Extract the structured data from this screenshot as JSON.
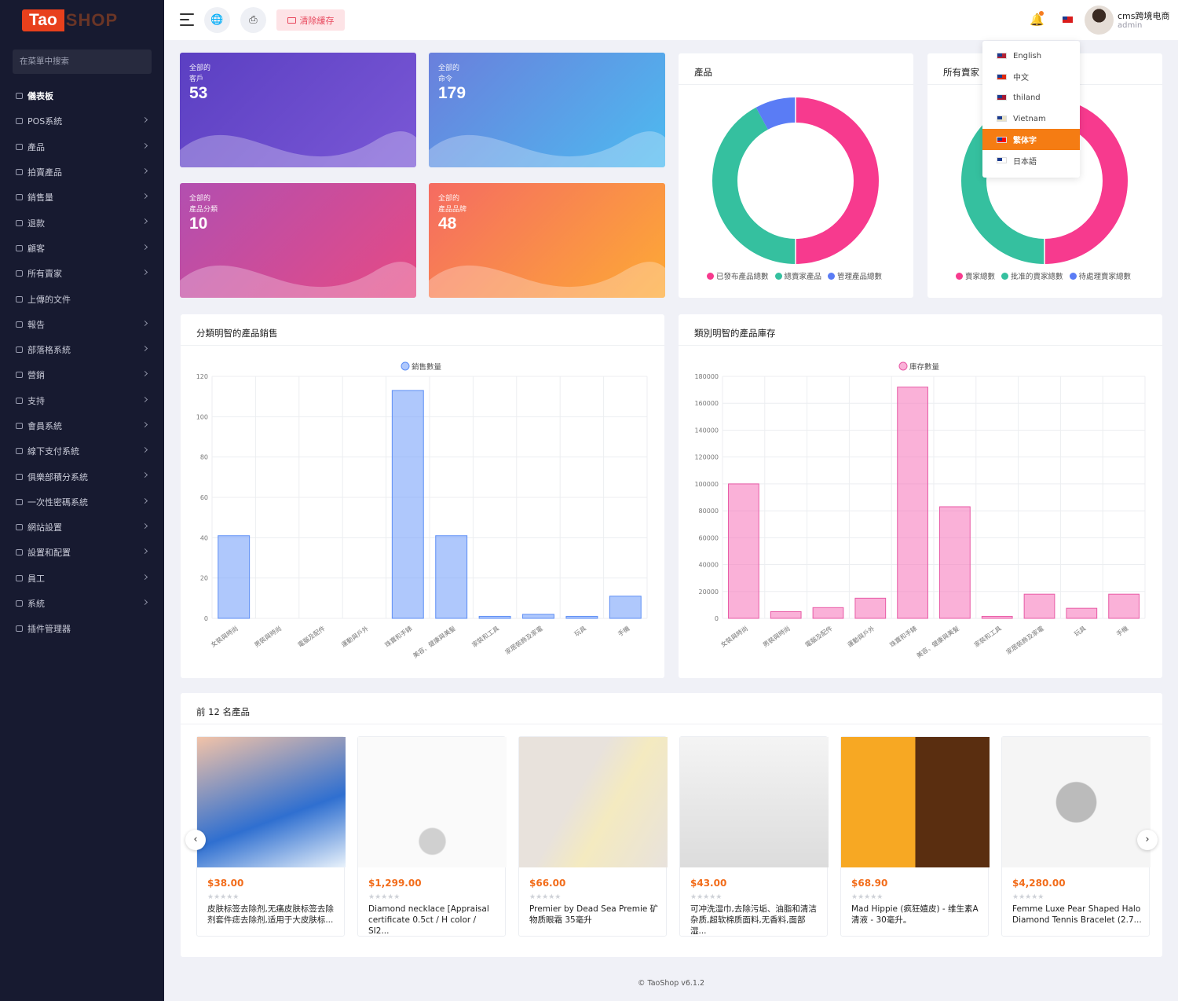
{
  "sidebar": {
    "logo_tao": "Tao",
    "logo_shop": "SHOP",
    "search_placeholder": "在菜單中搜索",
    "items": [
      {
        "label": "儀表板",
        "icon": "home-icon",
        "chevron": false
      },
      {
        "label": "POS系統",
        "icon": "list-icon",
        "chevron": true
      },
      {
        "label": "產品",
        "icon": "cart-icon",
        "chevron": true
      },
      {
        "label": "拍賣產品",
        "icon": "gavel-icon",
        "chevron": true
      },
      {
        "label": "銷售量",
        "icon": "sales-icon",
        "chevron": true
      },
      {
        "label": "退款",
        "icon": "refund-icon",
        "chevron": true
      },
      {
        "label": "顧客",
        "icon": "users-icon",
        "chevron": true
      },
      {
        "label": "所有賣家",
        "icon": "user-icon",
        "chevron": true
      },
      {
        "label": "上傳的文件",
        "icon": "file-icon",
        "chevron": false
      },
      {
        "label": "報告",
        "icon": "report-icon",
        "chevron": true
      },
      {
        "label": "部落格系統",
        "icon": "megaphone-icon",
        "chevron": true
      },
      {
        "label": "營銷",
        "icon": "megaphone-icon",
        "chevron": true
      },
      {
        "label": "支持",
        "icon": "link-icon",
        "chevron": true
      },
      {
        "label": "會員系統",
        "icon": "link-icon",
        "chevron": true
      },
      {
        "label": "線下支付系統",
        "icon": "money-icon",
        "chevron": true
      },
      {
        "label": "俱樂部積分系統",
        "icon": "points-icon",
        "chevron": true
      },
      {
        "label": "一次性密碼系統",
        "icon": "phone-icon",
        "chevron": true
      },
      {
        "label": "網站設置",
        "icon": "monitor-icon",
        "chevron": true
      },
      {
        "label": "設置和配置",
        "icon": "gear-icon",
        "chevron": true
      },
      {
        "label": "員工",
        "icon": "user-icon",
        "chevron": true
      },
      {
        "label": "系統",
        "icon": "user-icon",
        "chevron": true
      },
      {
        "label": "插件管理器",
        "icon": "plugin-icon",
        "chevron": false
      }
    ]
  },
  "topbar": {
    "clear_cache": "清除緩存",
    "user_name": "cms跨境电商",
    "user_role": "admin"
  },
  "language_menu": [
    {
      "label": "English",
      "selected": false
    },
    {
      "label": "中文",
      "selected": false
    },
    {
      "label": "thiland",
      "selected": false
    },
    {
      "label": "Vietnam",
      "selected": false
    },
    {
      "label": "繁体字",
      "selected": true
    },
    {
      "label": "日本語",
      "selected": false
    }
  ],
  "stats": [
    {
      "line1": "全部的",
      "line2": "客戶",
      "value": "53"
    },
    {
      "line1": "全部的",
      "line2": "命令",
      "value": "179"
    },
    {
      "line1": "全部的",
      "line2": "產品分類",
      "value": "10"
    },
    {
      "line1": "全部的",
      "line2": "產品品牌",
      "value": "48"
    }
  ],
  "donut_products": {
    "title": "產品",
    "legend": [
      "已發布產品總數",
      "總賣家產品",
      "管理產品總數"
    ]
  },
  "donut_sellers": {
    "title": "所有賣家",
    "legend": [
      "賣家總數",
      "批准的賣家總數",
      "待處理賣家總數"
    ]
  },
  "colors": {
    "pink": "#f73a8e",
    "teal": "#35c09f",
    "blue": "#5a7cf5",
    "orange": "#f57c13",
    "price": "#f26c1a"
  },
  "chart_data": [
    {
      "type": "bar",
      "title": "分類明智的產品銷售",
      "legend": "銷售數量",
      "categories": [
        "女裝與時尚",
        "男裝與時尚",
        "電腦及配件",
        "運動與戶外",
        "珠寶和手錶",
        "美容、健康與美髮",
        "家裝和工具",
        "家居裝飾及家電",
        "玩具",
        "手機"
      ],
      "values": [
        41,
        0,
        0,
        0,
        113,
        41,
        1,
        2,
        1,
        11
      ],
      "ylim": [
        0,
        120
      ],
      "yticks": [
        "0",
        "20",
        "40",
        "60",
        "80",
        "100",
        "120"
      ]
    },
    {
      "type": "bar",
      "title": "類別明智的產品庫存",
      "legend": "庫存數量",
      "categories": [
        "女裝與時尚",
        "男裝與時尚",
        "電腦及配件",
        "運動與戶外",
        "珠寶和手錶",
        "美容、健康與美髮",
        "家裝和工具",
        "家居裝飾及家電",
        "玩具",
        "手機"
      ],
      "values": [
        100000,
        5000,
        8000,
        15000,
        172000,
        83000,
        1500,
        18000,
        7500,
        18000
      ],
      "ylim": [
        0,
        180000
      ],
      "yticks": [
        "0",
        "20000",
        "40000",
        "60000",
        "80000",
        "100000",
        "120000",
        "140000",
        "160000",
        "180000"
      ]
    }
  ],
  "top_products": {
    "title": "前 12 名產品",
    "items": [
      {
        "price": "$38.00",
        "name": "皮肤标签去除剂,无痛皮肤标签去除剂套件痣去除剂,适用于大皮肤标..."
      },
      {
        "price": "$1,299.00",
        "name": "Diamond necklace [Appraisal certificate 0.5ct / H color / SI2..."
      },
      {
        "price": "$66.00",
        "name": "Premier by Dead Sea Premie 矿物质眼霜 35毫升"
      },
      {
        "price": "$43.00",
        "name": "可冲洗湿巾,去除污垢、油脂和清洁杂质,超软棉质面料,无香料,面部湿..."
      },
      {
        "price": "$68.90",
        "name": "Mad Hippie (疯狂嬉皮) - 维生素A 清液 - 30毫升。"
      },
      {
        "price": "$4,280.00",
        "name": "Femme Luxe Pear Shaped Halo Diamond Tennis Bracelet (2.7..."
      }
    ]
  },
  "footer": "© TaoShop v6.1.2"
}
